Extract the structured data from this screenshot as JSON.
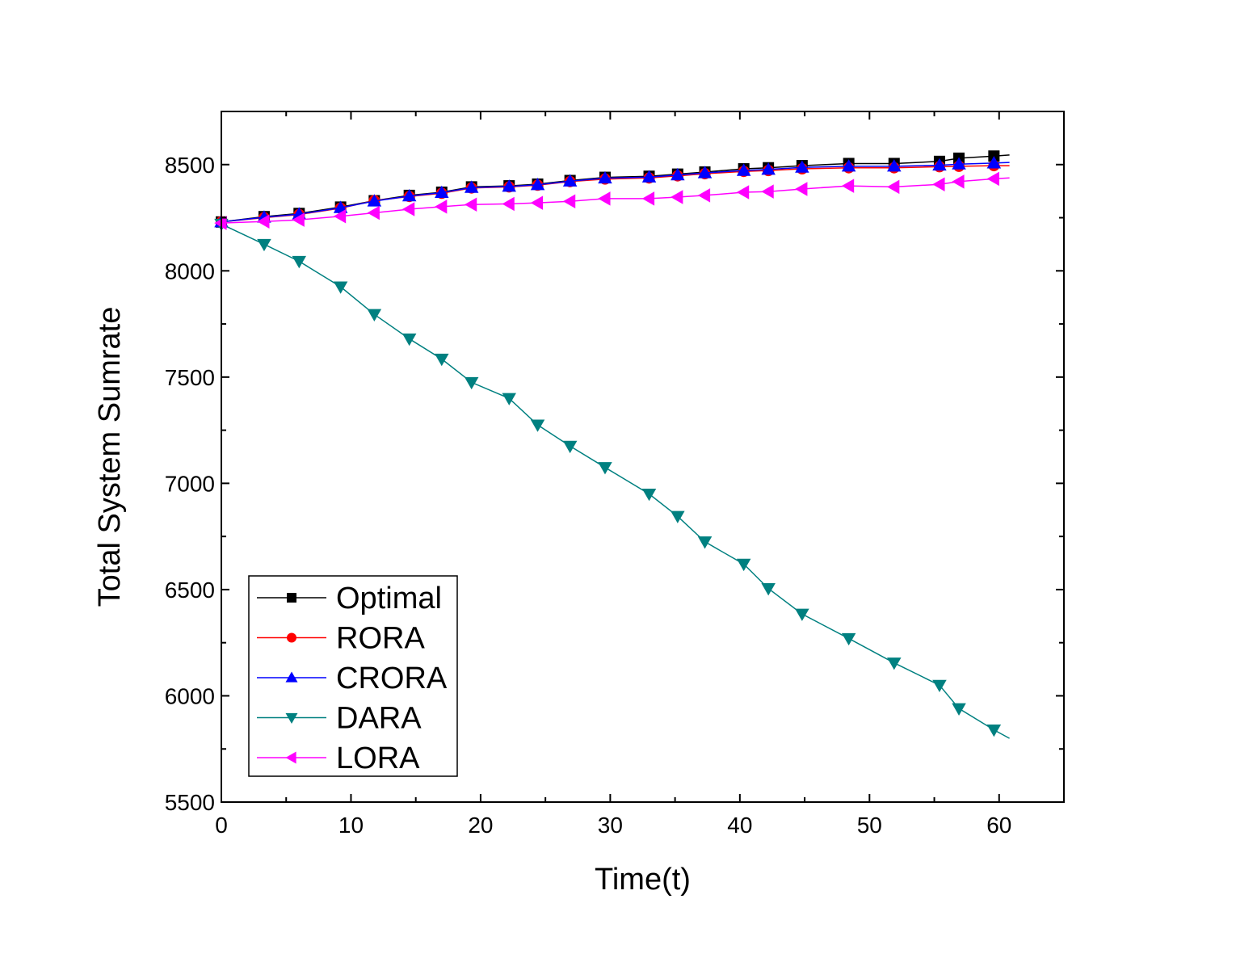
{
  "chart_data": {
    "type": "line",
    "title": "",
    "xlabel": "Time(t)",
    "ylabel": "Total System Sumrate",
    "xlim": [
      0,
      65
    ],
    "ylim": [
      5500,
      8750
    ],
    "xticks": [
      0,
      10,
      20,
      30,
      40,
      50,
      60
    ],
    "yticks": [
      5500,
      6000,
      6500,
      7000,
      7500,
      8000,
      8500
    ],
    "grid": false,
    "legend_position": "bottom-left",
    "series": [
      {
        "name": "Optimal",
        "color": "#000000",
        "marker": "square",
        "x": [
          0,
          3.3,
          6,
          9.2,
          11.8,
          14.5,
          17,
          19.3,
          22.2,
          24.4,
          26.9,
          29.6,
          33,
          35.2,
          37.3,
          40.3,
          42.2,
          44.8,
          48.4,
          51.9,
          55.4,
          56.9,
          59.6,
          60.8
        ],
        "y": [
          8230,
          8255,
          8270,
          8300,
          8330,
          8355,
          8370,
          8395,
          8400,
          8408,
          8425,
          8440,
          8445,
          8455,
          8465,
          8480,
          8485,
          8495,
          8505,
          8505,
          8515,
          8530,
          8540,
          8545
        ]
      },
      {
        "name": "RORA",
        "color": "#ff0000",
        "marker": "circle",
        "x": [
          0,
          3.3,
          6,
          9.2,
          11.8,
          14.5,
          17,
          19.3,
          22.2,
          24.4,
          26.9,
          29.6,
          33,
          35.2,
          37.3,
          40.3,
          42.2,
          44.8,
          48.4,
          51.9,
          55.4,
          56.9,
          59.6,
          60.8
        ],
        "y": [
          8230,
          8250,
          8265,
          8295,
          8330,
          8350,
          8365,
          8390,
          8395,
          8403,
          8420,
          8432,
          8437,
          8447,
          8457,
          8468,
          8472,
          8480,
          8485,
          8485,
          8490,
          8492,
          8495,
          8495
        ]
      },
      {
        "name": "CRORA",
        "color": "#0000ff",
        "marker": "triangle-up",
        "x": [
          0,
          3.3,
          6,
          9.2,
          11.8,
          14.5,
          17,
          19.3,
          22.2,
          24.4,
          26.9,
          29.6,
          33,
          35.2,
          37.3,
          40.3,
          42.2,
          44.8,
          48.4,
          51.9,
          55.4,
          56.9,
          59.6,
          60.8
        ],
        "y": [
          8230,
          8252,
          8267,
          8297,
          8328,
          8352,
          8368,
          8392,
          8397,
          8405,
          8422,
          8436,
          8441,
          8451,
          8461,
          8472,
          8477,
          8487,
          8492,
          8492,
          8497,
          8502,
          8507,
          8510
        ]
      },
      {
        "name": "DARA",
        "color": "#008080",
        "marker": "triangle-down",
        "x": [
          0,
          3.3,
          6,
          9.2,
          11.8,
          14.5,
          17,
          19.3,
          22.2,
          24.4,
          26.9,
          29.6,
          33,
          35.2,
          37.3,
          40.3,
          42.2,
          44.8,
          48.4,
          51.9,
          55.4,
          56.9,
          59.6,
          60.8
        ],
        "y": [
          8220,
          8125,
          8045,
          7925,
          7795,
          7680,
          7585,
          7475,
          7400,
          7275,
          7175,
          7075,
          6950,
          6845,
          6725,
          6620,
          6505,
          6385,
          6270,
          6155,
          6050,
          5940,
          5840,
          5800
        ]
      },
      {
        "name": "LORA",
        "color": "#ff00ff",
        "marker": "triangle-left",
        "x": [
          0,
          3.3,
          6,
          9.2,
          11.8,
          14.5,
          17,
          19.3,
          22.2,
          24.4,
          26.9,
          29.6,
          33,
          35.2,
          37.3,
          40.3,
          42.2,
          44.8,
          48.4,
          51.9,
          55.4,
          56.9,
          59.6,
          60.8
        ],
        "y": [
          8225,
          8232,
          8240,
          8257,
          8273,
          8290,
          8302,
          8312,
          8315,
          8320,
          8327,
          8340,
          8340,
          8347,
          8355,
          8370,
          8373,
          8385,
          8400,
          8395,
          8407,
          8420,
          8433,
          8437
        ]
      }
    ]
  }
}
